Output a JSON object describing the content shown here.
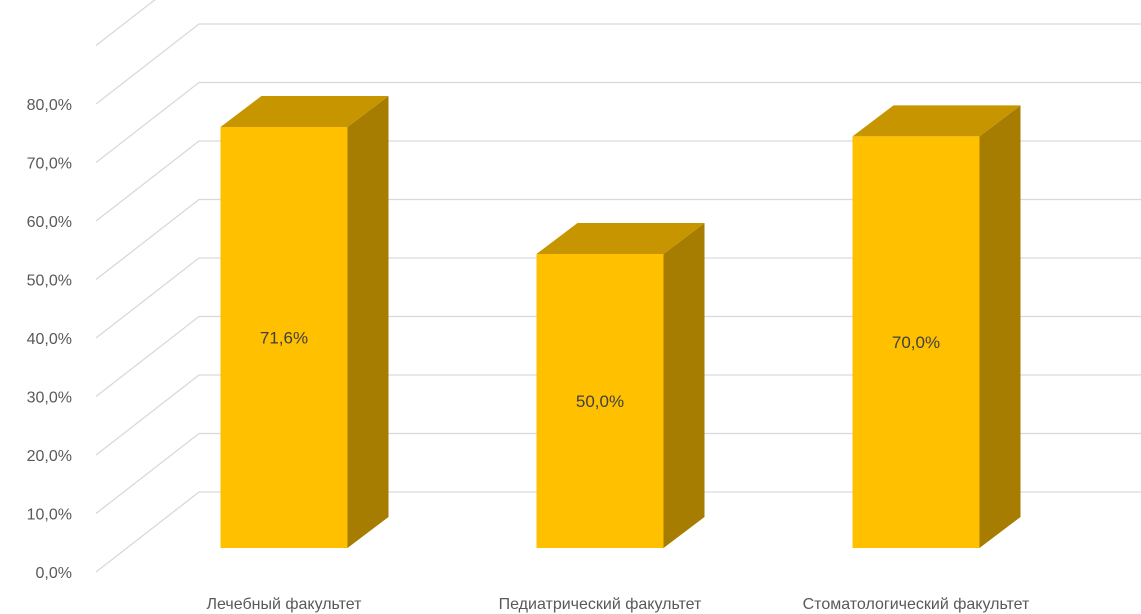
{
  "chart_data": {
    "type": "bar",
    "style": "3d-column",
    "categories": [
      "Лечебный факультет",
      "Педиатрический факультет",
      "Стоматологический факультет"
    ],
    "values": [
      71.6,
      50.0,
      70.0
    ],
    "data_labels": [
      "71,6%",
      "50,0%",
      "70,0%"
    ],
    "y_ticks": [
      "0,0%",
      "10,0%",
      "20,0%",
      "30,0%",
      "40,0%",
      "50,0%",
      "60,0%",
      "70,0%",
      "80,0%"
    ],
    "ylim": [
      0,
      90
    ],
    "grid": true,
    "legend": "none",
    "title": "",
    "xlabel": "",
    "ylabel": "",
    "colors": {
      "bar_front": "#ffc000",
      "bar_top": "#c69500",
      "bar_side": "#a67d00",
      "grid": "#d9d9d9",
      "text": "#595959"
    }
  }
}
